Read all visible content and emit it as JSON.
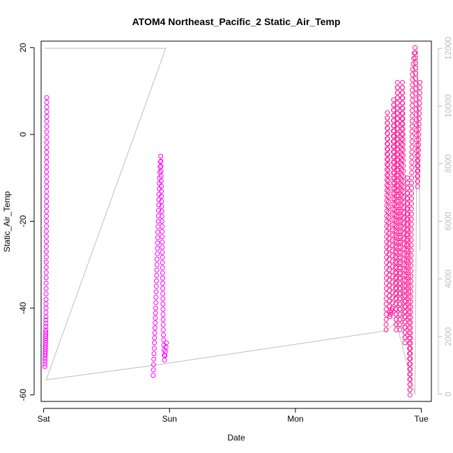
{
  "chart_data": {
    "type": "scatter",
    "title": "ATOM4 Northeast_Pacific_2 Static_Air_Temp",
    "xlabel": "Date",
    "ylabel": "Static_Air_Temp",
    "x_ticks": [
      "Sat",
      "Sun",
      "Mon",
      "Tue"
    ],
    "xlim": [
      -0.02,
      3.08
    ],
    "ylim": [
      -61.5,
      21.5
    ],
    "y_ticks": [
      -60,
      -40,
      -20,
      0,
      20
    ],
    "y2lim": [
      -250,
      12250
    ],
    "y2_ticks": [
      0,
      2000,
      4000,
      6000,
      8000,
      10000,
      12000
    ],
    "grid": false,
    "colors": {
      "primary": "#ff00ff",
      "secondary": "#ff1493",
      "line": "#bebebe"
    },
    "series": [
      {
        "axis": "left",
        "color": "#ff00ff",
        "marker": "open-circle",
        "segments": [
          {
            "x0": 0.01,
            "x1": 0.025,
            "points": [
              [
                0.01,
                -53.5
              ],
              [
                0.012,
                -51.0
              ],
              [
                0.014,
                -49.0
              ],
              [
                0.016,
                -47.0
              ],
              [
                0.017,
                -45.0
              ],
              [
                0.018,
                -42.0
              ],
              [
                0.019,
                -38.0
              ],
              [
                0.02,
                -33.0
              ],
              [
                0.021,
                -27.0
              ],
              [
                0.022,
                -20.0
              ],
              [
                0.023,
                -12.0
              ],
              [
                0.024,
                -3.0
              ],
              [
                0.0245,
                3.0
              ],
              [
                0.025,
                8.5
              ]
            ]
          },
          {
            "x0": 0.87,
            "x1": 0.975,
            "points": [
              [
                0.87,
                -55.5
              ],
              [
                0.88,
                -48.0
              ],
              [
                0.89,
                -40.0
              ],
              [
                0.9,
                -30.0
              ],
              [
                0.91,
                -20.0
              ],
              [
                0.92,
                -10.0
              ],
              [
                0.93,
                -5.0
              ],
              [
                0.94,
                -20.0
              ],
              [
                0.95,
                -45.0
              ],
              [
                0.96,
                -52.0
              ],
              [
                0.975,
                -48.0
              ]
            ]
          }
        ]
      },
      {
        "axis": "left",
        "color": "#ff1493",
        "marker": "open-circle",
        "segments": [
          {
            "x0": 2.72,
            "x1": 2.99,
            "points": [
              [
                2.72,
                -45.0
              ],
              [
                2.73,
                5.0
              ],
              [
                2.75,
                -42.0
              ],
              [
                2.77,
                -40.0
              ],
              [
                2.78,
                8.0
              ],
              [
                2.8,
                -45.0
              ],
              [
                2.81,
                12.0
              ],
              [
                2.83,
                -45.0
              ],
              [
                2.85,
                12.0
              ],
              [
                2.87,
                -48.0
              ],
              [
                2.89,
                -10.0
              ],
              [
                2.91,
                -60.0
              ],
              [
                2.93,
                15.0
              ],
              [
                2.95,
                20.0
              ],
              [
                2.97,
                -12.0
              ],
              [
                2.99,
                12.0
              ]
            ]
          }
        ]
      },
      {
        "axis": "right",
        "color": "#bebebe",
        "marker": "line",
        "points": [
          [
            0.01,
            12000
          ],
          [
            0.02,
            12000
          ],
          [
            0.97,
            12000
          ],
          [
            0.02,
            500
          ],
          [
            0.87,
            1000
          ],
          [
            2.72,
            2200
          ],
          [
            2.8,
            2500
          ],
          [
            2.95,
            0
          ],
          [
            2.97,
            12000
          ],
          [
            2.99,
            5000
          ]
        ]
      }
    ]
  }
}
